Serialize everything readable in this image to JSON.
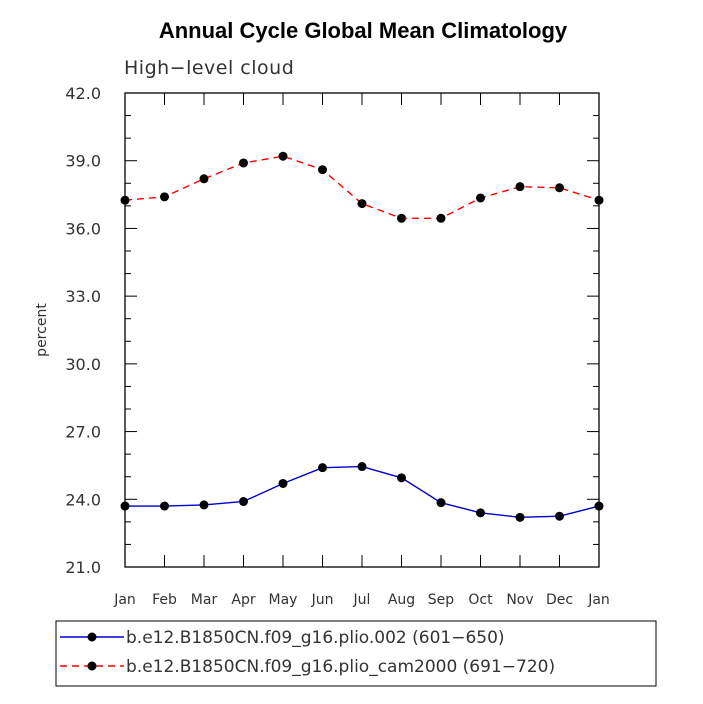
{
  "chart_data": {
    "type": "line",
    "title": "Annual Cycle Global Mean Climatology",
    "subtitle": "High−level cloud",
    "ylabel": "percent",
    "xlabel": "",
    "ylim": [
      21.0,
      42.0
    ],
    "y_ticks": [
      "21.0",
      "24.0",
      "27.0",
      "30.0",
      "33.0",
      "36.0",
      "39.0",
      "42.0"
    ],
    "categories": [
      "Jan",
      "Feb",
      "Mar",
      "Apr",
      "May",
      "Jun",
      "Jul",
      "Aug",
      "Sep",
      "Oct",
      "Nov",
      "Dec",
      "Jan"
    ],
    "series": [
      {
        "name": "b.e12.B1850CN.f09_g16.plio.002 (601−650)",
        "color": "#0000cc",
        "dash": "solid",
        "values": [
          23.7,
          23.7,
          23.75,
          23.9,
          24.7,
          25.4,
          25.45,
          24.95,
          23.85,
          23.4,
          23.2,
          23.25,
          23.7
        ]
      },
      {
        "name": "b.e12.B1850CN.f09_g16.plio_cam2000 (691−720)",
        "color": "#ff0000",
        "dash": "dashed",
        "values": [
          37.25,
          37.4,
          38.2,
          38.9,
          39.2,
          38.6,
          37.1,
          36.45,
          36.45,
          37.35,
          37.85,
          37.8,
          37.25
        ]
      }
    ],
    "legend_position": "bottom"
  }
}
